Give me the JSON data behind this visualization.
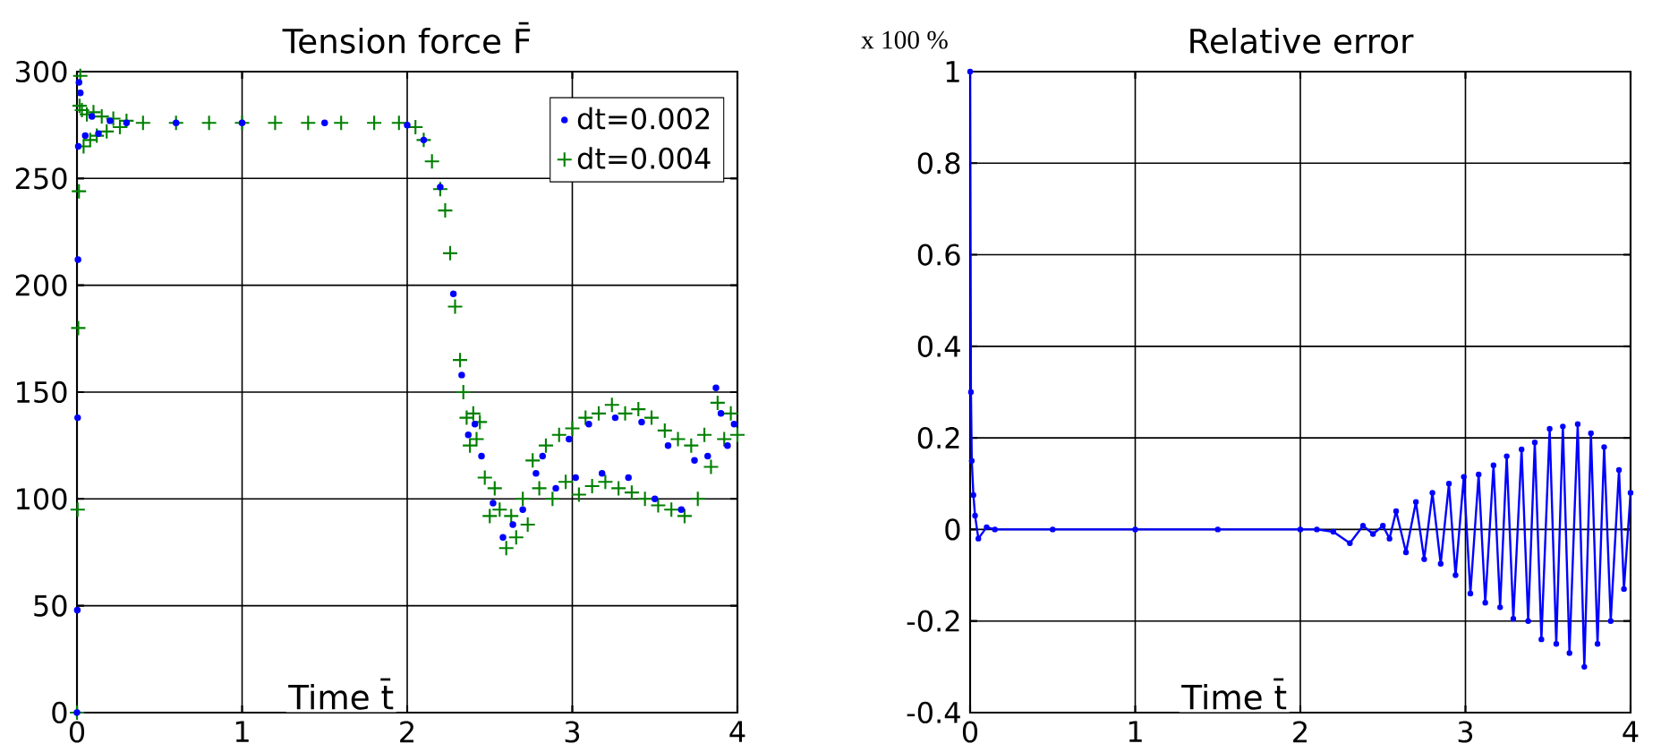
{
  "chart_data": [
    {
      "type": "scatter",
      "title": "Tension force F̄",
      "xlabel": "Time t̄",
      "xlim": [
        0,
        4
      ],
      "ylim": [
        0,
        300
      ],
      "xticks": [
        0,
        1,
        2,
        3,
        4
      ],
      "yticks": [
        0,
        50,
        100,
        150,
        200,
        250,
        300
      ],
      "grid": true,
      "legend": "top right",
      "series": [
        {
          "name": "dt=0.002",
          "color": "#0000ff",
          "marker": "circle",
          "x": [
            0,
            0.002,
            0.004,
            0.006,
            0.008,
            0.012,
            0.02,
            0.05,
            0.09,
            0.13,
            0.2,
            0.3,
            0.6,
            1.0,
            1.5,
            2.0,
            2.1,
            2.2,
            2.28,
            2.33,
            2.37,
            2.41,
            2.45,
            2.52,
            2.58,
            2.64,
            2.7,
            2.78,
            2.82,
            2.9,
            2.98,
            3.02,
            3.1,
            3.18,
            3.26,
            3.34,
            3.42,
            3.5,
            3.58,
            3.66,
            3.74,
            3.82,
            3.87,
            3.9,
            3.94,
            3.98
          ],
          "values": [
            0,
            48,
            138,
            212,
            265,
            295,
            290,
            270,
            279,
            271,
            277,
            276,
            276,
            276,
            276,
            275,
            268,
            246,
            196,
            158,
            130,
            135,
            120,
            98,
            82,
            88,
            95,
            112,
            120,
            105,
            128,
            110,
            135,
            112,
            138,
            110,
            136,
            100,
            125,
            95,
            118,
            120,
            152,
            140,
            125,
            135
          ]
        },
        {
          "name": "dt=0.004",
          "color": "#008000",
          "marker": "cross",
          "x": [
            0,
            0.004,
            0.008,
            0.012,
            0.016,
            0.02,
            0.03,
            0.04,
            0.06,
            0.08,
            0.1,
            0.12,
            0.15,
            0.18,
            0.22,
            0.26,
            0.3,
            0.4,
            0.6,
            0.8,
            1.0,
            1.2,
            1.4,
            1.6,
            1.8,
            1.95,
            2.05,
            2.1,
            2.15,
            2.2,
            2.23,
            2.26,
            2.29,
            2.32,
            2.34,
            2.36,
            2.38,
            2.4,
            2.42,
            2.44,
            2.47,
            2.5,
            2.53,
            2.56,
            2.6,
            2.63,
            2.66,
            2.7,
            2.73,
            2.76,
            2.8,
            2.84,
            2.88,
            2.92,
            2.96,
            3.0,
            3.04,
            3.08,
            3.12,
            3.16,
            3.2,
            3.24,
            3.28,
            3.32,
            3.36,
            3.4,
            3.44,
            3.48,
            3.52,
            3.56,
            3.6,
            3.64,
            3.68,
            3.72,
            3.76,
            3.8,
            3.84,
            3.88,
            3.92,
            3.96,
            4.0
          ],
          "values": [
            0,
            95,
            180,
            244,
            284,
            298,
            282,
            265,
            280,
            268,
            281,
            270,
            279,
            272,
            278,
            274,
            277,
            276,
            276,
            276,
            276,
            276,
            276,
            276,
            276,
            276,
            274,
            268,
            258,
            245,
            235,
            215,
            190,
            165,
            150,
            138,
            125,
            140,
            128,
            136,
            110,
            92,
            105,
            95,
            77,
            92,
            82,
            100,
            88,
            118,
            105,
            125,
            100,
            130,
            108,
            133,
            102,
            138,
            106,
            140,
            108,
            144,
            105,
            140,
            103,
            142,
            100,
            138,
            97,
            132,
            95,
            128,
            92,
            125,
            100,
            130,
            115,
            145,
            128,
            140,
            130
          ]
        }
      ]
    },
    {
      "type": "line",
      "title": "Relative error",
      "xlabel": "Time t̄",
      "ylabel": "x 100 %",
      "xlim": [
        0,
        4
      ],
      "ylim": [
        -0.4,
        1
      ],
      "xticks": [
        0,
        1,
        2,
        3,
        4
      ],
      "yticks": [
        -0.4,
        -0.2,
        0,
        0.2,
        0.4,
        0.6,
        0.8,
        1
      ],
      "grid": true,
      "marker": "circle",
      "series": [
        {
          "color": "#0000ff",
          "x": [
            0,
            0.005,
            0.01,
            0.02,
            0.03,
            0.05,
            0.1,
            0.15,
            0.5,
            1.0,
            1.5,
            2.0,
            2.1,
            2.2,
            2.3,
            2.38,
            2.44,
            2.5,
            2.54,
            2.58,
            2.64,
            2.7,
            2.75,
            2.8,
            2.85,
            2.9,
            2.94,
            2.99,
            3.03,
            3.08,
            3.12,
            3.17,
            3.21,
            3.25,
            3.29,
            3.34,
            3.38,
            3.42,
            3.46,
            3.51,
            3.55,
            3.59,
            3.63,
            3.68,
            3.72,
            3.76,
            3.8,
            3.84,
            3.88,
            3.93,
            3.96,
            4.0
          ],
          "values": [
            1,
            0.3,
            0.15,
            0.075,
            0.03,
            -0.02,
            0.005,
            0,
            0,
            0,
            0,
            0,
            0,
            -0.005,
            -0.03,
            0.008,
            -0.01,
            0.008,
            -0.02,
            0.04,
            -0.05,
            0.06,
            -0.065,
            0.08,
            -0.075,
            0.1,
            -0.1,
            0.115,
            -0.14,
            0.12,
            -0.16,
            0.14,
            -0.17,
            0.16,
            -0.195,
            0.175,
            -0.2,
            0.19,
            -0.24,
            0.22,
            -0.25,
            0.225,
            -0.27,
            0.23,
            -0.3,
            0.21,
            -0.25,
            0.18,
            -0.2,
            0.13,
            -0.13,
            0.08
          ]
        }
      ]
    }
  ]
}
